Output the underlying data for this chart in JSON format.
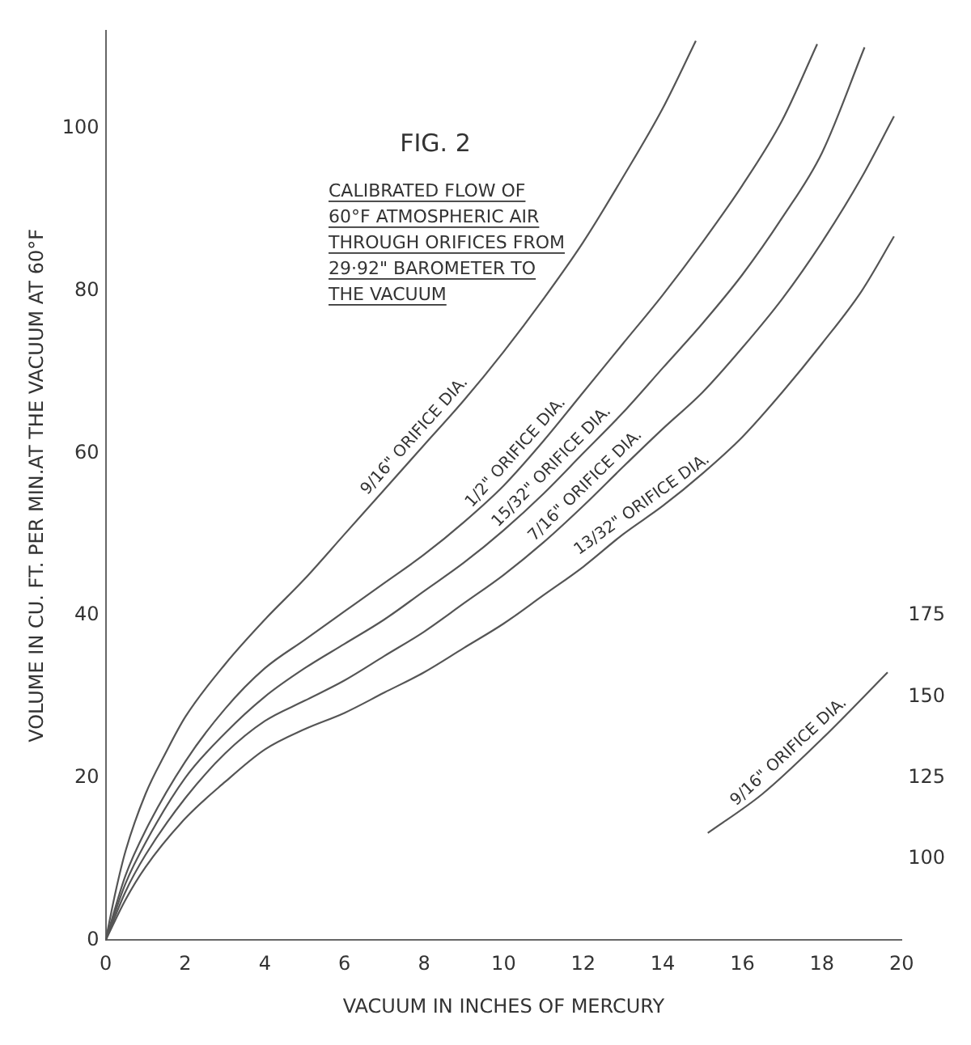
{
  "chart_data": {
    "type": "line",
    "title": "FIG. 2",
    "subtitle": "CALIBRATED FLOW OF 60°F ATMOSPHERIC AIR THROUGH ORIFICES FROM 29·92\" BAROMETER TO THE VACUUM",
    "xlabel": "VACUUM IN INCHES OF MERCURY",
    "ylabel": "VOLUME IN CU. FT. PER MIN.AT THE VACUUM AT 60°F",
    "xlim": [
      0,
      20
    ],
    "xticks": [
      0,
      2,
      4,
      6,
      8,
      10,
      12,
      14,
      16,
      18,
      20
    ],
    "ylim": [
      0,
      112
    ],
    "yticks": [
      0,
      20,
      40,
      60,
      80,
      100
    ],
    "y2lim": [
      75,
      355
    ],
    "y2ticks": [
      100,
      125,
      150,
      175
    ],
    "grid": false,
    "legend": false,
    "marker": "none",
    "line_style": "solid",
    "series": [
      {
        "name": "9/16\" ORIFICE DIA.",
        "color": "#555555",
        "x": [
          0,
          0.25,
          0.5,
          1,
          1.5,
          2,
          3,
          4,
          5,
          6,
          7,
          8,
          9,
          10,
          11,
          12,
          13,
          14,
          14.83
        ],
        "values": [
          0,
          6,
          11,
          18,
          23,
          27.5,
          34,
          39.5,
          44.5,
          50,
          55.5,
          61,
          66.5,
          72.5,
          79,
          86,
          94,
          102.5,
          110.8
        ]
      },
      {
        "name": "1/2\" ORIFICE DIA.",
        "color": "#555555",
        "x": [
          0,
          0.5,
          1,
          2,
          3,
          4,
          5,
          6,
          7,
          8,
          9,
          10,
          11,
          12,
          13,
          14,
          15,
          16,
          17,
          17.88
        ],
        "values": [
          0,
          8,
          13.5,
          22,
          28.5,
          33.5,
          37,
          40.5,
          44,
          47.5,
          51.5,
          56,
          61.5,
          67.5,
          73.5,
          79.5,
          86,
          93,
          101,
          110.4
        ]
      },
      {
        "name": "15/32\" ORIFICE DIA.",
        "color": "#555555",
        "x": [
          0,
          0.5,
          1,
          2,
          3,
          4,
          5,
          6,
          7,
          8,
          9,
          10,
          11,
          12,
          13,
          14,
          15,
          16,
          17,
          18,
          19.07
        ],
        "values": [
          0,
          7,
          12,
          20,
          25.5,
          30,
          33.5,
          36.5,
          39.5,
          43,
          46.5,
          50.5,
          55,
          60,
          65,
          70.5,
          76,
          82,
          89,
          97,
          110
        ]
      },
      {
        "name": "7/16\" ORIFICE DIA.",
        "color": "#555555",
        "x": [
          0,
          0.5,
          1,
          2,
          3,
          4,
          5,
          6,
          7,
          8,
          9,
          10,
          11,
          12,
          13,
          14,
          15,
          16,
          17,
          18,
          19,
          19.81
        ],
        "values": [
          0,
          6,
          10.5,
          17.5,
          23,
          27,
          29.5,
          32,
          35,
          38,
          41.5,
          45,
          49,
          53.5,
          58.3,
          63,
          67.5,
          73,
          79,
          86,
          94,
          101.5
        ]
      },
      {
        "name": "13/32\" ORIFICE DIA.",
        "color": "#555555",
        "x": [
          0,
          0.5,
          1,
          2,
          3,
          4,
          5,
          6,
          7,
          8,
          9,
          10,
          11,
          12,
          13,
          14,
          15,
          16,
          17,
          18,
          19,
          19.81
        ],
        "values": [
          0,
          5,
          9,
          15,
          19.5,
          23.5,
          26,
          28,
          30.5,
          33,
          36,
          39,
          42.5,
          46,
          50,
          53.5,
          57.5,
          62,
          67.5,
          73.5,
          80,
          86.7
        ]
      },
      {
        "name": "9/16\" ORIFICE DIA.",
        "color": "#555555",
        "axis": "y2",
        "x": [
          15.13,
          16.5,
          18,
          19.65
        ],
        "values": [
          108,
          120,
          137,
          157.5
        ]
      }
    ]
  }
}
